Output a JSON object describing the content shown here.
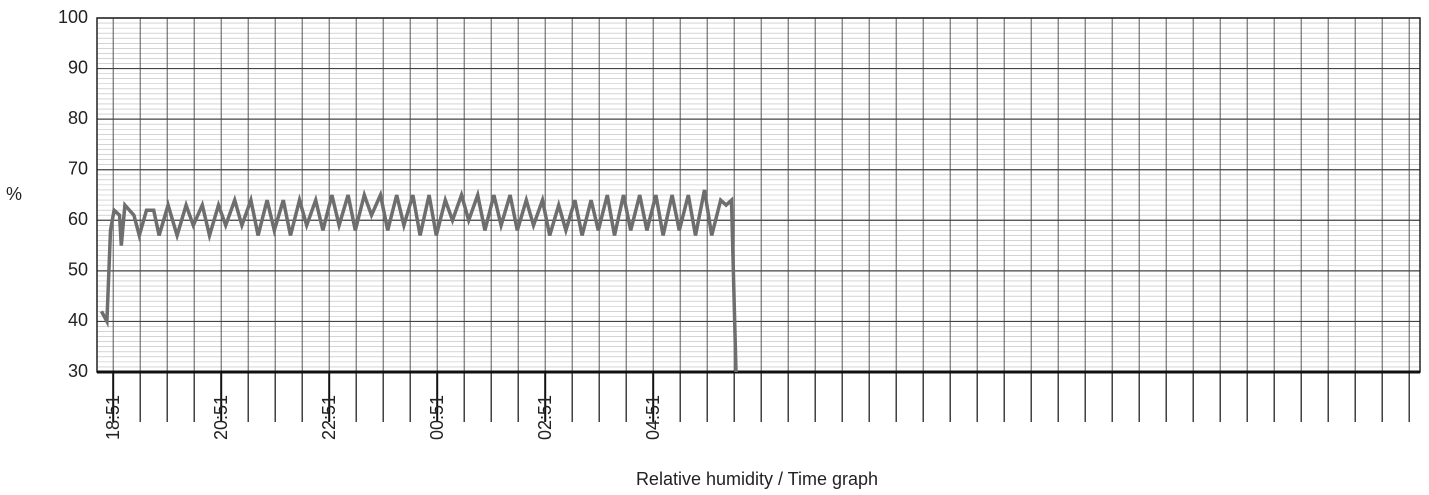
{
  "chart_data": {
    "type": "line",
    "title": "Relative humidity / Time graph",
    "ylabel": "%",
    "ylim": [
      30,
      100
    ],
    "yticks": [
      30,
      40,
      50,
      60,
      70,
      80,
      90,
      100
    ],
    "xlim": [
      "18:33",
      "19:03"
    ],
    "xticks": [
      "18:51",
      "20:51",
      "22:51",
      "00:51",
      "02:51",
      "04:51"
    ],
    "grid": true,
    "x": [
      "18:38",
      "18:44",
      "18:48",
      "18:52",
      "18:58",
      "19:00",
      "19:04",
      "19:14",
      "19:20",
      "19:28",
      "19:36",
      "19:42",
      "19:52",
      "20:02",
      "20:12",
      "20:20",
      "20:30",
      "20:38",
      "20:48",
      "20:56",
      "21:06",
      "21:14",
      "21:24",
      "21:32",
      "21:42",
      "21:50",
      "22:00",
      "22:08",
      "22:18",
      "22:26",
      "22:36",
      "22:44",
      "22:54",
      "23:02",
      "23:12",
      "23:20",
      "23:30",
      "23:38",
      "23:48",
      "23:56",
      "00:06",
      "00:14",
      "00:24",
      "00:32",
      "00:42",
      "00:50",
      "01:00",
      "01:08",
      "01:18",
      "01:26",
      "01:36",
      "01:44",
      "01:54",
      "02:02",
      "02:12",
      "02:20",
      "02:30",
      "02:38",
      "02:48",
      "02:56",
      "03:06",
      "03:14",
      "03:24",
      "03:32",
      "03:42",
      "03:50",
      "04:00",
      "04:08",
      "04:18",
      "04:26",
      "04:36",
      "04:44",
      "04:54",
      "05:02",
      "05:12",
      "05:20",
      "05:30",
      "05:38",
      "05:48",
      "05:56",
      "06:06",
      "06:12",
      "06:18",
      "06:23"
    ],
    "series": [
      {
        "name": "Relative humidity",
        "color": "#6e6e6e",
        "values": [
          42,
          40,
          58,
          62,
          61,
          55,
          63,
          61,
          57,
          62,
          62,
          57,
          63,
          57,
          63,
          59,
          63,
          57,
          63,
          59,
          64,
          59,
          64,
          57,
          64,
          58,
          64,
          57,
          64,
          59,
          64,
          58,
          65,
          59,
          65,
          58,
          65,
          61,
          65,
          58,
          65,
          59,
          65,
          57,
          65,
          57,
          64,
          60,
          65,
          60,
          65,
          58,
          65,
          59,
          65,
          58,
          64,
          59,
          64,
          57,
          63,
          58,
          64,
          57,
          64,
          58,
          65,
          57,
          65,
          58,
          65,
          58,
          65,
          57,
          65,
          58,
          65,
          57,
          66,
          57,
          64,
          63,
          64,
          30
        ]
      }
    ]
  }
}
